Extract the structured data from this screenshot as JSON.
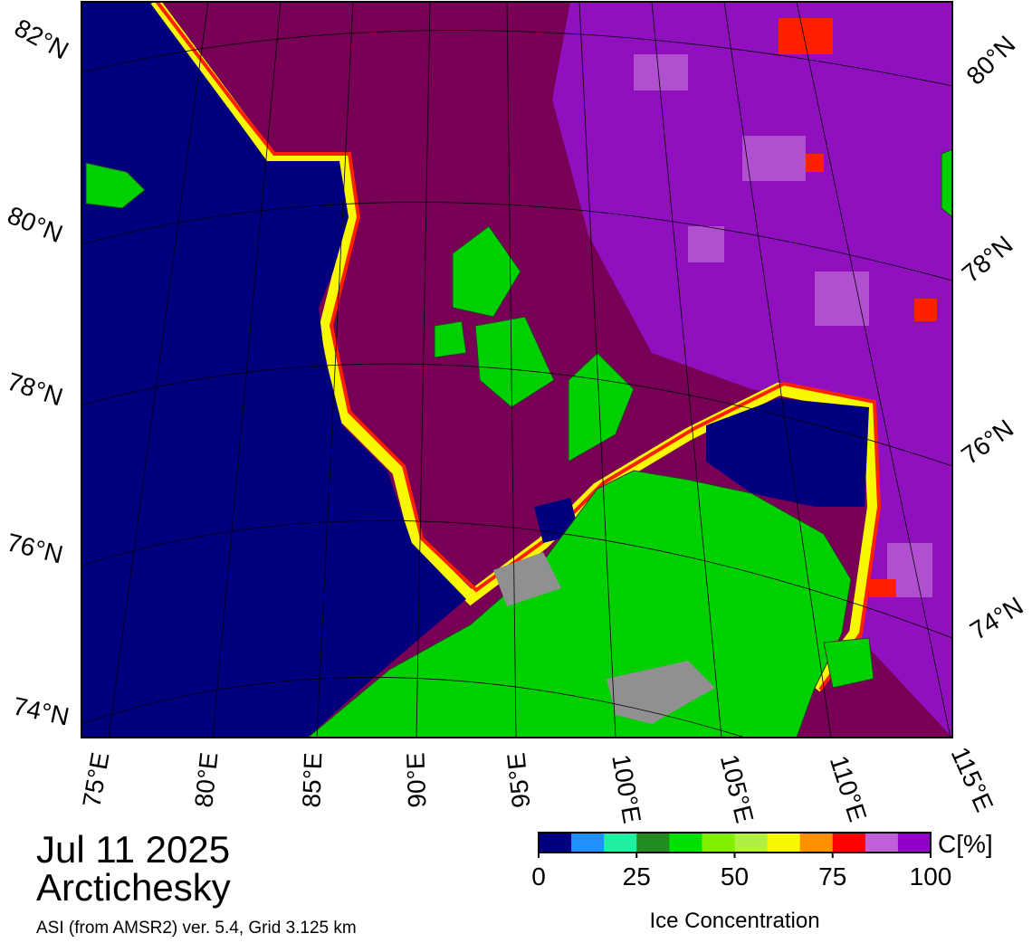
{
  "map": {
    "lat_labels_left": [
      "82°N",
      "80°N",
      "78°N",
      "76°N",
      "74°N"
    ],
    "lat_labels_right": [
      "80°N",
      "78°N",
      "76°N",
      "74°N"
    ],
    "lon_labels": [
      "75°E",
      "80°E",
      "85°E",
      "90°E",
      "95°E",
      "100°E",
      "105°E",
      "110°E",
      "115°E"
    ]
  },
  "date": "Jul 11 2025",
  "region": "Arctichesky",
  "source": "ASI (from AMSR2) ver. 5.4,  Grid 3.125 km",
  "colorbar": {
    "unit": "C[%]",
    "label": "Ice Concentration",
    "ticks": [
      0,
      25,
      50,
      75,
      100
    ],
    "colors": [
      "#00007f",
      "#1e90ff",
      "#20f0a0",
      "#228b22",
      "#00e000",
      "#80f000",
      "#b0f040",
      "#f8f800",
      "#ff9000",
      "#ff0000",
      "#c060d8",
      "#9000c8"
    ]
  }
}
